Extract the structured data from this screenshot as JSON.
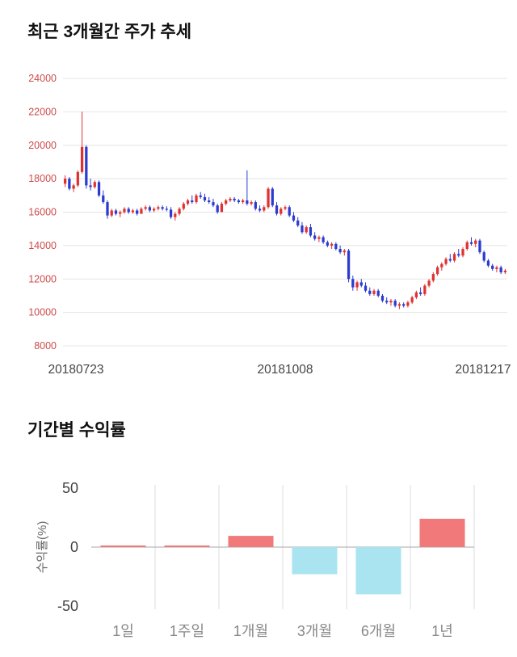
{
  "chart_data": [
    {
      "type": "candlestick",
      "title": "최근 3개월간 주가 추세",
      "ylim": [
        8000,
        24000
      ],
      "yticks": [
        24000,
        22000,
        20000,
        18000,
        16000,
        14000,
        12000,
        10000,
        8000
      ],
      "xlabels": [
        "20180723",
        "20181008",
        "20181217"
      ],
      "up_color": "#e03131",
      "down_color": "#2b3bd0",
      "grid_color": "#e4e4e4",
      "ytick_color": "#cc4b4b",
      "xtick_color": "#444444",
      "candles": [
        [
          17700,
          18200,
          17500,
          18000
        ],
        [
          18000,
          18100,
          17300,
          17400
        ],
        [
          17400,
          17700,
          17200,
          17600
        ],
        [
          17600,
          18500,
          17500,
          18400
        ],
        [
          18400,
          22000,
          18300,
          19900
        ],
        [
          19900,
          20000,
          17400,
          17600
        ],
        [
          17600,
          18000,
          17300,
          17500
        ],
        [
          17500,
          17900,
          17400,
          17800
        ],
        [
          17800,
          17900,
          16900,
          17000
        ],
        [
          17000,
          17300,
          16500,
          16600
        ],
        [
          16600,
          16700,
          15600,
          15800
        ],
        [
          15800,
          16200,
          15700,
          16100
        ],
        [
          16100,
          16200,
          15800,
          15900
        ],
        [
          15900,
          16100,
          15700,
          16000
        ],
        [
          16000,
          16300,
          15900,
          16200
        ],
        [
          16200,
          16300,
          15900,
          16000
        ],
        [
          16000,
          16200,
          15900,
          16100
        ],
        [
          16100,
          16200,
          15800,
          15900
        ],
        [
          15900,
          16300,
          15900,
          16200
        ],
        [
          16200,
          16400,
          16100,
          16300
        ],
        [
          16300,
          16400,
          16000,
          16100
        ],
        [
          16100,
          16300,
          16000,
          16200
        ],
        [
          16200,
          16400,
          16100,
          16300
        ],
        [
          16300,
          16400,
          16100,
          16200
        ],
        [
          16200,
          16350,
          16050,
          16150
        ],
        [
          16150,
          16300,
          15600,
          15700
        ],
        [
          15700,
          16000,
          15500,
          15900
        ],
        [
          15900,
          16300,
          15800,
          16200
        ],
        [
          16200,
          16600,
          16100,
          16500
        ],
        [
          16500,
          16800,
          16400,
          16700
        ],
        [
          16700,
          17000,
          16500,
          16600
        ],
        [
          16600,
          17100,
          16500,
          17000
        ],
        [
          17000,
          17200,
          16800,
          16900
        ],
        [
          16900,
          17100,
          16600,
          16700
        ],
        [
          16700,
          16900,
          16500,
          16600
        ],
        [
          16600,
          16800,
          16300,
          16400
        ],
        [
          16400,
          16500,
          15900,
          16000
        ],
        [
          16000,
          16600,
          16000,
          16500
        ],
        [
          16500,
          16800,
          16400,
          16700
        ],
        [
          16700,
          16900,
          16600,
          16800
        ],
        [
          16800,
          16900,
          16600,
          16700
        ],
        [
          16700,
          16800,
          16500,
          16600
        ],
        [
          16600,
          16800,
          16500,
          16700
        ],
        [
          16700,
          18500,
          16400,
          16500
        ],
        [
          16500,
          16700,
          16400,
          16600
        ],
        [
          16600,
          16700,
          16100,
          16200
        ],
        [
          16200,
          16400,
          16000,
          16100
        ],
        [
          16100,
          16400,
          16000,
          16300
        ],
        [
          16300,
          17500,
          16200,
          17400
        ],
        [
          17400,
          17500,
          16300,
          16400
        ],
        [
          16400,
          16600,
          15800,
          15900
        ],
        [
          15900,
          16300,
          15800,
          16200
        ],
        [
          16200,
          16400,
          16100,
          16300
        ],
        [
          16300,
          16400,
          15700,
          15800
        ],
        [
          15800,
          16000,
          15400,
          15500
        ],
        [
          15500,
          15700,
          15100,
          15200
        ],
        [
          15200,
          15400,
          14700,
          14800
        ],
        [
          14800,
          15200,
          14700,
          15100
        ],
        [
          15100,
          15300,
          14500,
          14600
        ],
        [
          14600,
          14800,
          14300,
          14400
        ],
        [
          14400,
          14600,
          14200,
          14500
        ],
        [
          14500,
          14600,
          14100,
          14200
        ],
        [
          14200,
          14300,
          13900,
          14000
        ],
        [
          14000,
          14200,
          13800,
          14100
        ],
        [
          14100,
          14200,
          13700,
          13800
        ],
        [
          13800,
          14000,
          13500,
          13600
        ],
        [
          13600,
          13800,
          13400,
          13700
        ],
        [
          13700,
          13800,
          11800,
          12000
        ],
        [
          12000,
          12200,
          11300,
          11500
        ],
        [
          11500,
          11900,
          11300,
          11800
        ],
        [
          11800,
          12000,
          11500,
          11600
        ],
        [
          11600,
          11800,
          11200,
          11300
        ],
        [
          11300,
          11500,
          11000,
          11100
        ],
        [
          11100,
          11400,
          11000,
          11300
        ],
        [
          11300,
          11400,
          10900,
          11000
        ],
        [
          11000,
          11100,
          10600,
          10700
        ],
        [
          10700,
          10900,
          10500,
          10600
        ],
        [
          10600,
          10800,
          10400,
          10700
        ],
        [
          10700,
          10800,
          10300,
          10400
        ],
        [
          10400,
          10600,
          10200,
          10500
        ],
        [
          10500,
          10600,
          10300,
          10400
        ],
        [
          10400,
          10700,
          10300,
          10600
        ],
        [
          10600,
          11000,
          10500,
          10900
        ],
        [
          10900,
          11300,
          10800,
          11200
        ],
        [
          11200,
          11500,
          11000,
          11100
        ],
        [
          11100,
          11700,
          11000,
          11600
        ],
        [
          11600,
          12000,
          11500,
          11900
        ],
        [
          11900,
          12400,
          11800,
          12300
        ],
        [
          12300,
          12800,
          12200,
          12700
        ],
        [
          12700,
          13000,
          12500,
          12900
        ],
        [
          12900,
          13300,
          12800,
          13200
        ],
        [
          13200,
          13500,
          13000,
          13100
        ],
        [
          13100,
          13600,
          13000,
          13500
        ],
        [
          13500,
          13800,
          13300,
          13400
        ],
        [
          13400,
          13900,
          13300,
          13800
        ],
        [
          13800,
          14300,
          13700,
          14200
        ],
        [
          14200,
          14500,
          14000,
          14100
        ],
        [
          14100,
          14400,
          13900,
          14300
        ],
        [
          14300,
          14400,
          13500,
          13600
        ],
        [
          13600,
          13700,
          13000,
          13100
        ],
        [
          13100,
          13200,
          12700,
          12800
        ],
        [
          12800,
          12900,
          12500,
          12600
        ],
        [
          12600,
          12800,
          12400,
          12700
        ],
        [
          12700,
          12800,
          12300,
          12400
        ],
        [
          12400,
          12600,
          12300,
          12500
        ]
      ]
    },
    {
      "type": "bar",
      "title": "기간별 수익률",
      "ylabel": "수익률(%)",
      "ylim": [
        -50,
        50
      ],
      "yticks": [
        50,
        0,
        -50
      ],
      "categories": [
        "1일",
        "1주일",
        "1개월",
        "3개월",
        "6개월",
        "1년"
      ],
      "values": [
        0.6,
        1.3,
        9.5,
        -23,
        -40,
        24
      ],
      "pos_color": "#f17979",
      "neg_color": "#a9e4f0",
      "grid_color": "#dddddd",
      "zero_line_color": "#aaaaaa",
      "ytick_color": "#444444",
      "xtick_color": "#888888",
      "axis_label_color": "#666666"
    }
  ]
}
